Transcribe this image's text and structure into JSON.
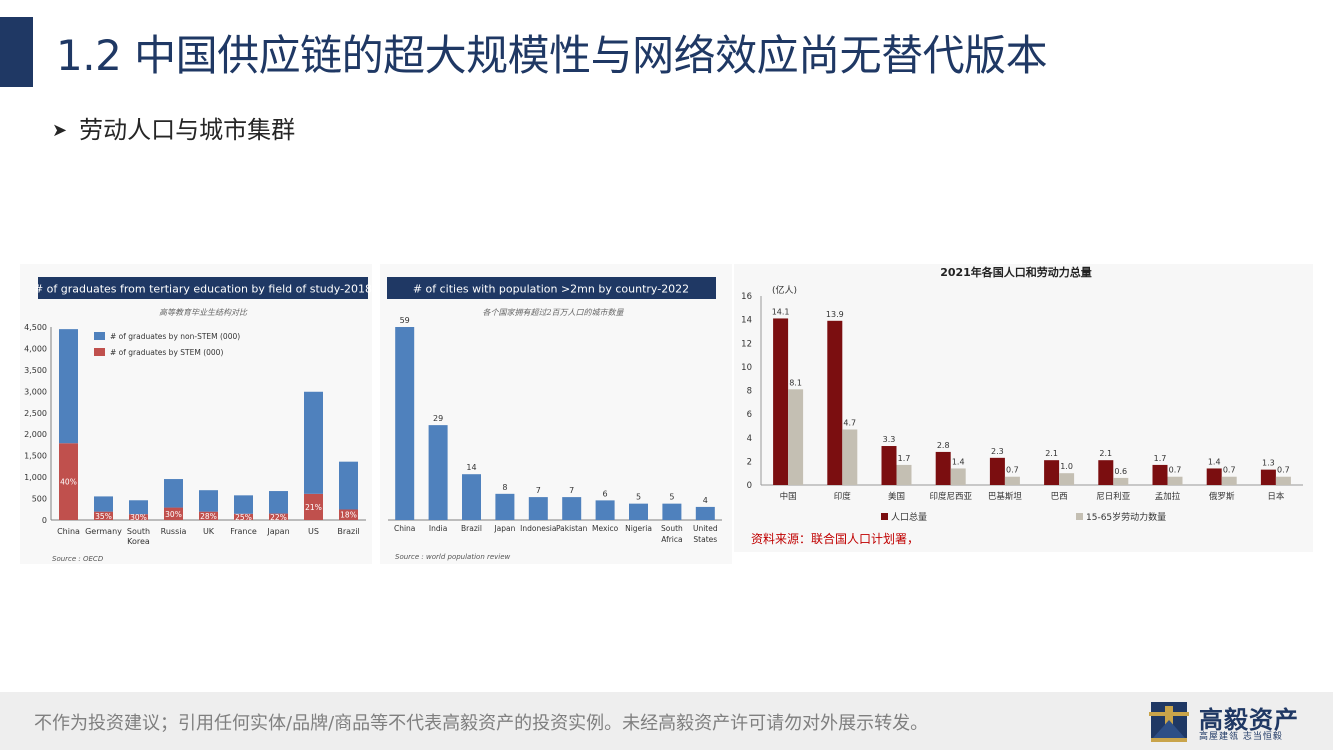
{
  "header": {
    "title": "1.2 中国供应链的超大规模性与网络效应尚无替代版本",
    "bullet": "劳动人口与城市集群"
  },
  "footer": {
    "disclaimer": "不作为投资建议；引用任何实体/品牌/商品等不代表高毅资产的投资实例。未经高毅资产许可请勿对外展示转发。",
    "logo_name": "高毅资产",
    "logo_tagline": "高屋建瓴 志当恒毅"
  },
  "colors": {
    "title": "#1f3864",
    "header_band": "#1f3864",
    "non_stem": "#4f81bd",
    "stem": "#c0504d",
    "cities": "#4f81bd",
    "population": "#7b0e10",
    "labor": "#c4bfb3",
    "source_red": "#c00000"
  },
  "chart_data": [
    {
      "type": "bar",
      "stacked": true,
      "title": "# of graduates from tertiary education by field of study-2018",
      "subtitle": "高等教育毕业生结构对比",
      "categories": [
        "China",
        "Germany",
        "South Korea",
        "Russia",
        "UK",
        "France",
        "Japan",
        "US",
        "Brazil"
      ],
      "series": [
        {
          "name": "# of graduates by non-STEM (000)",
          "values": [
            2660,
            355,
            325,
            665,
            500,
            430,
            525,
            2380,
            1115
          ]
        },
        {
          "name": "# of graduates by STEM (000)",
          "values": [
            1790,
            195,
            135,
            290,
            195,
            145,
            150,
            610,
            245
          ]
        }
      ],
      "data_labels": [
        "40%",
        "35%",
        "30%",
        "30%",
        "28%",
        "25%",
        "22%",
        "21%",
        "18%"
      ],
      "ylim": [
        0,
        4500
      ],
      "yticks": [
        "0",
        "500",
        "1,000",
        "1,500",
        "2,000",
        "2,500",
        "3,000",
        "3,500",
        "4,000",
        "4,500"
      ],
      "legend": "top-left",
      "grid": false,
      "source": "Source : OECD"
    },
    {
      "type": "bar",
      "title": "# of cities with population >2mn by country-2022",
      "subtitle": "各个国家拥有超过2百万人口的城市数量",
      "categories": [
        "China",
        "India",
        "Brazil",
        "Japan",
        "Indonesia",
        "Pakistan",
        "Mexico",
        "Nigeria",
        "South Africa",
        "United States"
      ],
      "values": [
        59,
        29,
        14,
        8,
        7,
        7,
        6,
        5,
        5,
        4
      ],
      "grid": false,
      "source": "Source : world population review"
    },
    {
      "type": "bar",
      "title": "2021年各国人口和劳动力总量",
      "ylabel": "(亿人)",
      "categories": [
        "中国",
        "印度",
        "美国",
        "印度尼西亚",
        "巴基斯坦",
        "巴西",
        "尼日利亚",
        "孟加拉",
        "俄罗斯",
        "日本"
      ],
      "series": [
        {
          "name": "人口总量",
          "values": [
            14.1,
            13.9,
            3.3,
            2.8,
            2.3,
            2.1,
            2.1,
            1.7,
            1.4,
            1.3
          ]
        },
        {
          "name": "15-65岁劳动力数量",
          "values": [
            8.1,
            4.7,
            1.7,
            1.4,
            0.7,
            1.0,
            0.6,
            0.7,
            0.7,
            0.7
          ]
        }
      ],
      "ylim": [
        0,
        16
      ],
      "yticks": [
        "0",
        "2",
        "4",
        "6",
        "8",
        "10",
        "12",
        "14",
        "16"
      ],
      "legend": "bottom",
      "grid": false,
      "source": "资料来源：联合国人口计划署，"
    }
  ]
}
